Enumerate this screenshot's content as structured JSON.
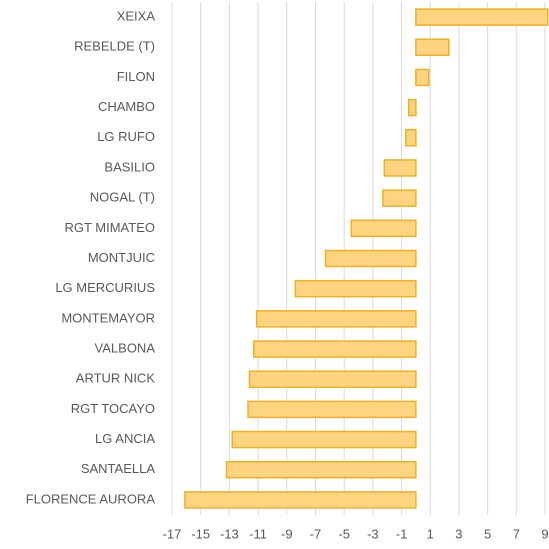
{
  "chart_data": {
    "type": "barh",
    "categories": [
      "XEIXA",
      "REBELDE (T)",
      "FILON",
      "CHAMBO",
      "LG RUFO",
      "BASILIO",
      "NOGAL (T)",
      "RGT MIMATEO",
      "MONTJUIC",
      "LG MERCURIUS",
      "MONTEMAYOR",
      "VALBONA",
      "ARTUR NICK",
      "RGT TOCAYO",
      "LG ANCIA",
      "SANTAELLA",
      "FLORENCE AURORA"
    ],
    "values": [
      9.2,
      2.3,
      0.9,
      -0.5,
      -0.7,
      -2.2,
      -2.3,
      -4.5,
      -6.3,
      -8.4,
      -11.1,
      -11.3,
      -11.6,
      -11.7,
      -12.8,
      -13.2,
      -16.1
    ],
    "color": "#ffd480",
    "edge_color": "#f0b020",
    "xlim": [
      -17,
      9
    ],
    "xticks": [
      -17,
      -15,
      -13,
      -11,
      -9,
      -7,
      -5,
      -3,
      -1,
      1,
      3,
      5,
      7,
      9
    ],
    "grid": true
  }
}
